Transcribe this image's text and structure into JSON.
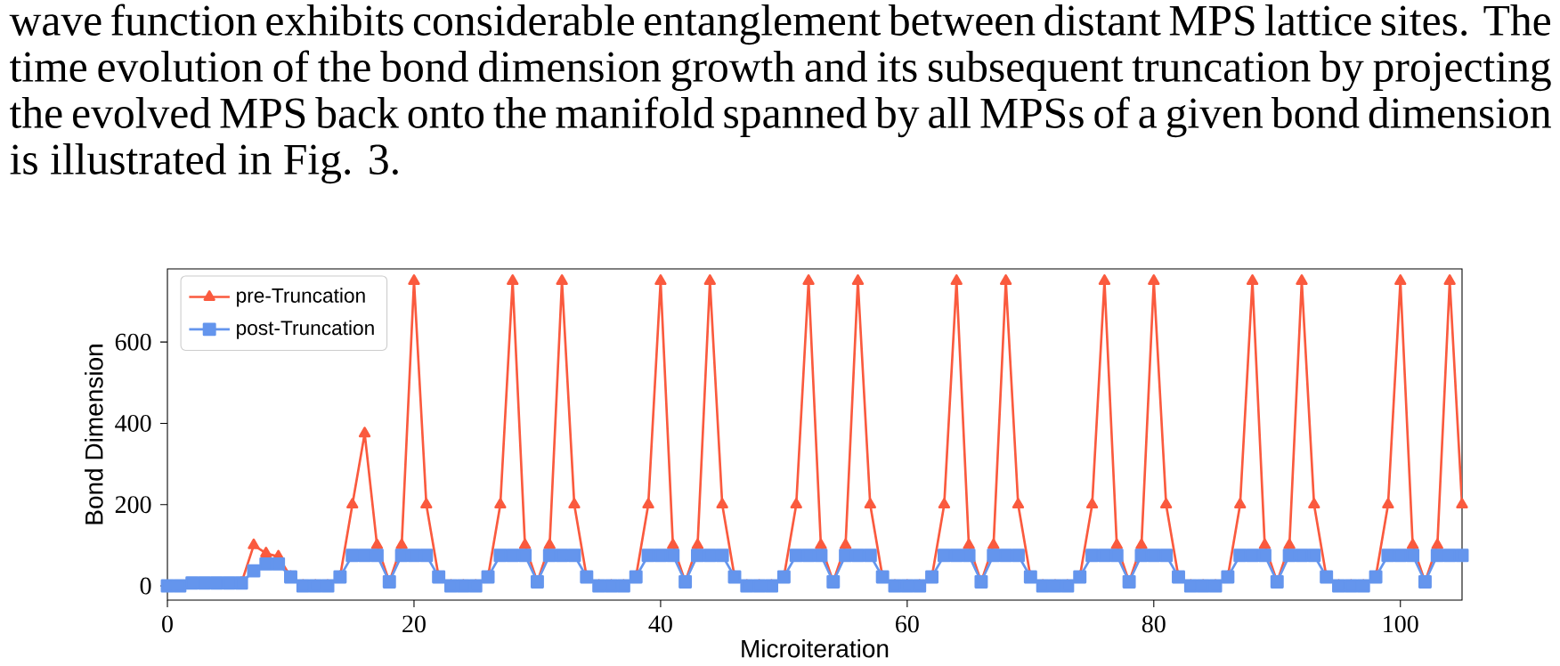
{
  "chart_data": {
    "type": "line",
    "annotations": [
      "wave function exhibits considerable entanglement between distant MPS lattice sites. The time evolution of the bond dimension growth and its subsequent truncation by projecting the evolved MPS back onto the manifold spanned by all MPSs of a given bond dimension is illustrated in Fig. 3."
    ],
    "xlabel": "Microiteration",
    "ylabel": "Bond Dimension",
    "x": [
      0,
      1,
      2,
      3,
      4,
      5,
      6,
      7,
      8,
      9,
      10,
      11,
      12,
      13,
      14,
      15,
      16,
      17,
      18,
      19,
      20,
      21,
      22,
      23,
      24,
      25,
      26,
      27,
      28,
      29,
      30,
      31,
      32,
      33,
      34,
      35,
      36,
      37,
      38,
      39,
      40,
      41,
      42,
      43,
      44,
      45,
      46,
      47,
      48,
      49,
      50,
      51,
      52,
      53,
      54,
      55,
      56,
      57,
      58,
      59,
      60,
      61,
      62,
      63,
      64,
      65,
      66,
      67,
      68,
      69,
      70,
      71,
      72,
      73,
      74,
      75,
      76,
      77,
      78,
      79,
      80,
      81,
      82,
      83,
      84,
      85,
      86,
      87,
      88,
      89,
      90,
      91,
      92,
      93,
      94,
      95,
      96,
      97,
      98,
      99,
      100,
      101,
      102,
      103,
      104,
      105
    ],
    "series": [
      {
        "name": "pre-Truncation",
        "color": "#fa5a3e",
        "marker": "triangle",
        "values": [
          null,
          null,
          null,
          null,
          null,
          null,
          7,
          100,
          80,
          72,
          22,
          0,
          0,
          0,
          22,
          200,
          375,
          100,
          10,
          100,
          750,
          200,
          22,
          0,
          0,
          0,
          22,
          200,
          750,
          100,
          10,
          100,
          750,
          200,
          22,
          0,
          0,
          0,
          22,
          200,
          750,
          100,
          10,
          100,
          750,
          200,
          22,
          0,
          0,
          0,
          22,
          200,
          750,
          100,
          10,
          100,
          750,
          200,
          22,
          0,
          0,
          0,
          22,
          200,
          750,
          100,
          10,
          100,
          750,
          200,
          22,
          0,
          0,
          0,
          22,
          200,
          750,
          100,
          10,
          100,
          750,
          200,
          22,
          0,
          0,
          0,
          22,
          200,
          750,
          100,
          10,
          100,
          750,
          200,
          22,
          0,
          0,
          0,
          22,
          200,
          750,
          100,
          10,
          100,
          750,
          200
        ]
      },
      {
        "name": "post-Truncation",
        "color": "#6495ed",
        "marker": "square",
        "values": [
          0,
          0,
          7,
          7,
          7,
          7,
          7,
          37,
          54,
          54,
          22,
          0,
          0,
          0,
          22,
          75,
          75,
          75,
          10,
          75,
          75,
          75,
          22,
          0,
          0,
          0,
          22,
          75,
          75,
          75,
          10,
          75,
          75,
          75,
          22,
          0,
          0,
          0,
          22,
          75,
          75,
          75,
          10,
          75,
          75,
          75,
          22,
          0,
          0,
          0,
          22,
          75,
          75,
          75,
          10,
          75,
          75,
          75,
          22,
          0,
          0,
          0,
          22,
          75,
          75,
          75,
          10,
          75,
          75,
          75,
          22,
          0,
          0,
          0,
          22,
          75,
          75,
          75,
          10,
          75,
          75,
          75,
          22,
          0,
          0,
          0,
          22,
          75,
          75,
          75,
          10,
          75,
          75,
          75,
          22,
          0,
          0,
          0,
          22,
          75,
          75,
          75,
          10,
          75,
          75,
          75
        ]
      }
    ],
    "xlim": [
      0,
      105
    ],
    "ylim": [
      -35,
      780
    ],
    "xticks": [
      0,
      20,
      40,
      60,
      80,
      100
    ],
    "yticks": [
      0,
      200,
      400,
      600
    ],
    "legend": "top left"
  }
}
